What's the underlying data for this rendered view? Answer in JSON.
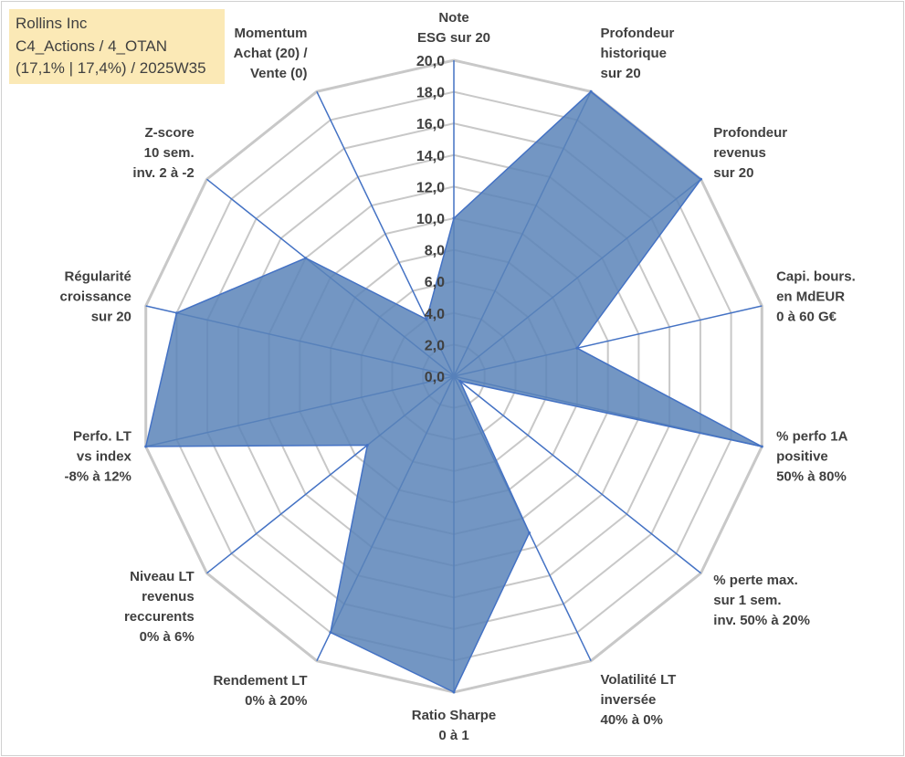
{
  "info_box": {
    "company": "Rollins Inc",
    "category": "C4_Actions / 4_OTAN",
    "stats": "(17,1% | 17,4%) / 2025W35"
  },
  "chart_data": {
    "type": "radar",
    "title": "",
    "rlim": [
      0,
      20
    ],
    "r_ticks": [
      "0,0",
      "2,0",
      "4,0",
      "6,0",
      "8,0",
      "10,0",
      "12,0",
      "14,0",
      "16,0",
      "18,0",
      "20,0"
    ],
    "grid": true,
    "colors": {
      "fill": "#5b84b8",
      "line": "#4472c4",
      "grid": "#c8c8c8"
    },
    "axes": [
      {
        "label": [
          "Note",
          "ESG sur 20"
        ],
        "value": 10.0
      },
      {
        "label": [
          "Profondeur",
          "historique",
          "sur 20"
        ],
        "value": 20.0
      },
      {
        "label": [
          "Profondeur",
          "revenus",
          "sur 20"
        ],
        "value": 20.0
      },
      {
        "label": [
          "Capi. bours.",
          "en MdEUR",
          "0 à 60 G€"
        ],
        "value": 8.0
      },
      {
        "label": [
          "% perfo 1A",
          "positive",
          "50% à 80%"
        ],
        "value": 20.0
      },
      {
        "label": [
          "% perte max.",
          "sur 1 sem.",
          "inv. 50% à 20%"
        ],
        "value": 0.5
      },
      {
        "label": [
          "Volatilité LT",
          "inversée",
          "40% à 0%"
        ],
        "value": 11.0
      },
      {
        "label": [
          "Ratio Sharpe",
          "0 à 1"
        ],
        "value": 20.0
      },
      {
        "label": [
          "Rendement LT",
          "0% à 20%"
        ],
        "value": 18.0
      },
      {
        "label": [
          "Niveau LT",
          "revenus",
          "reccurents",
          "0% à 6%"
        ],
        "value": 7.0
      },
      {
        "label": [
          "Perfo. LT",
          "vs index",
          "-8% à 12%"
        ],
        "value": 20.0
      },
      {
        "label": [
          "Régularité",
          "croissance",
          "sur 20"
        ],
        "value": 18.0
      },
      {
        "label": [
          "Z-score",
          "10 sem.",
          "inv. 2 à -2"
        ],
        "value": 12.0
      },
      {
        "label": [
          "Momentum",
          "Achat (20) /",
          "Vente (0)"
        ],
        "value": 4.0
      }
    ]
  }
}
